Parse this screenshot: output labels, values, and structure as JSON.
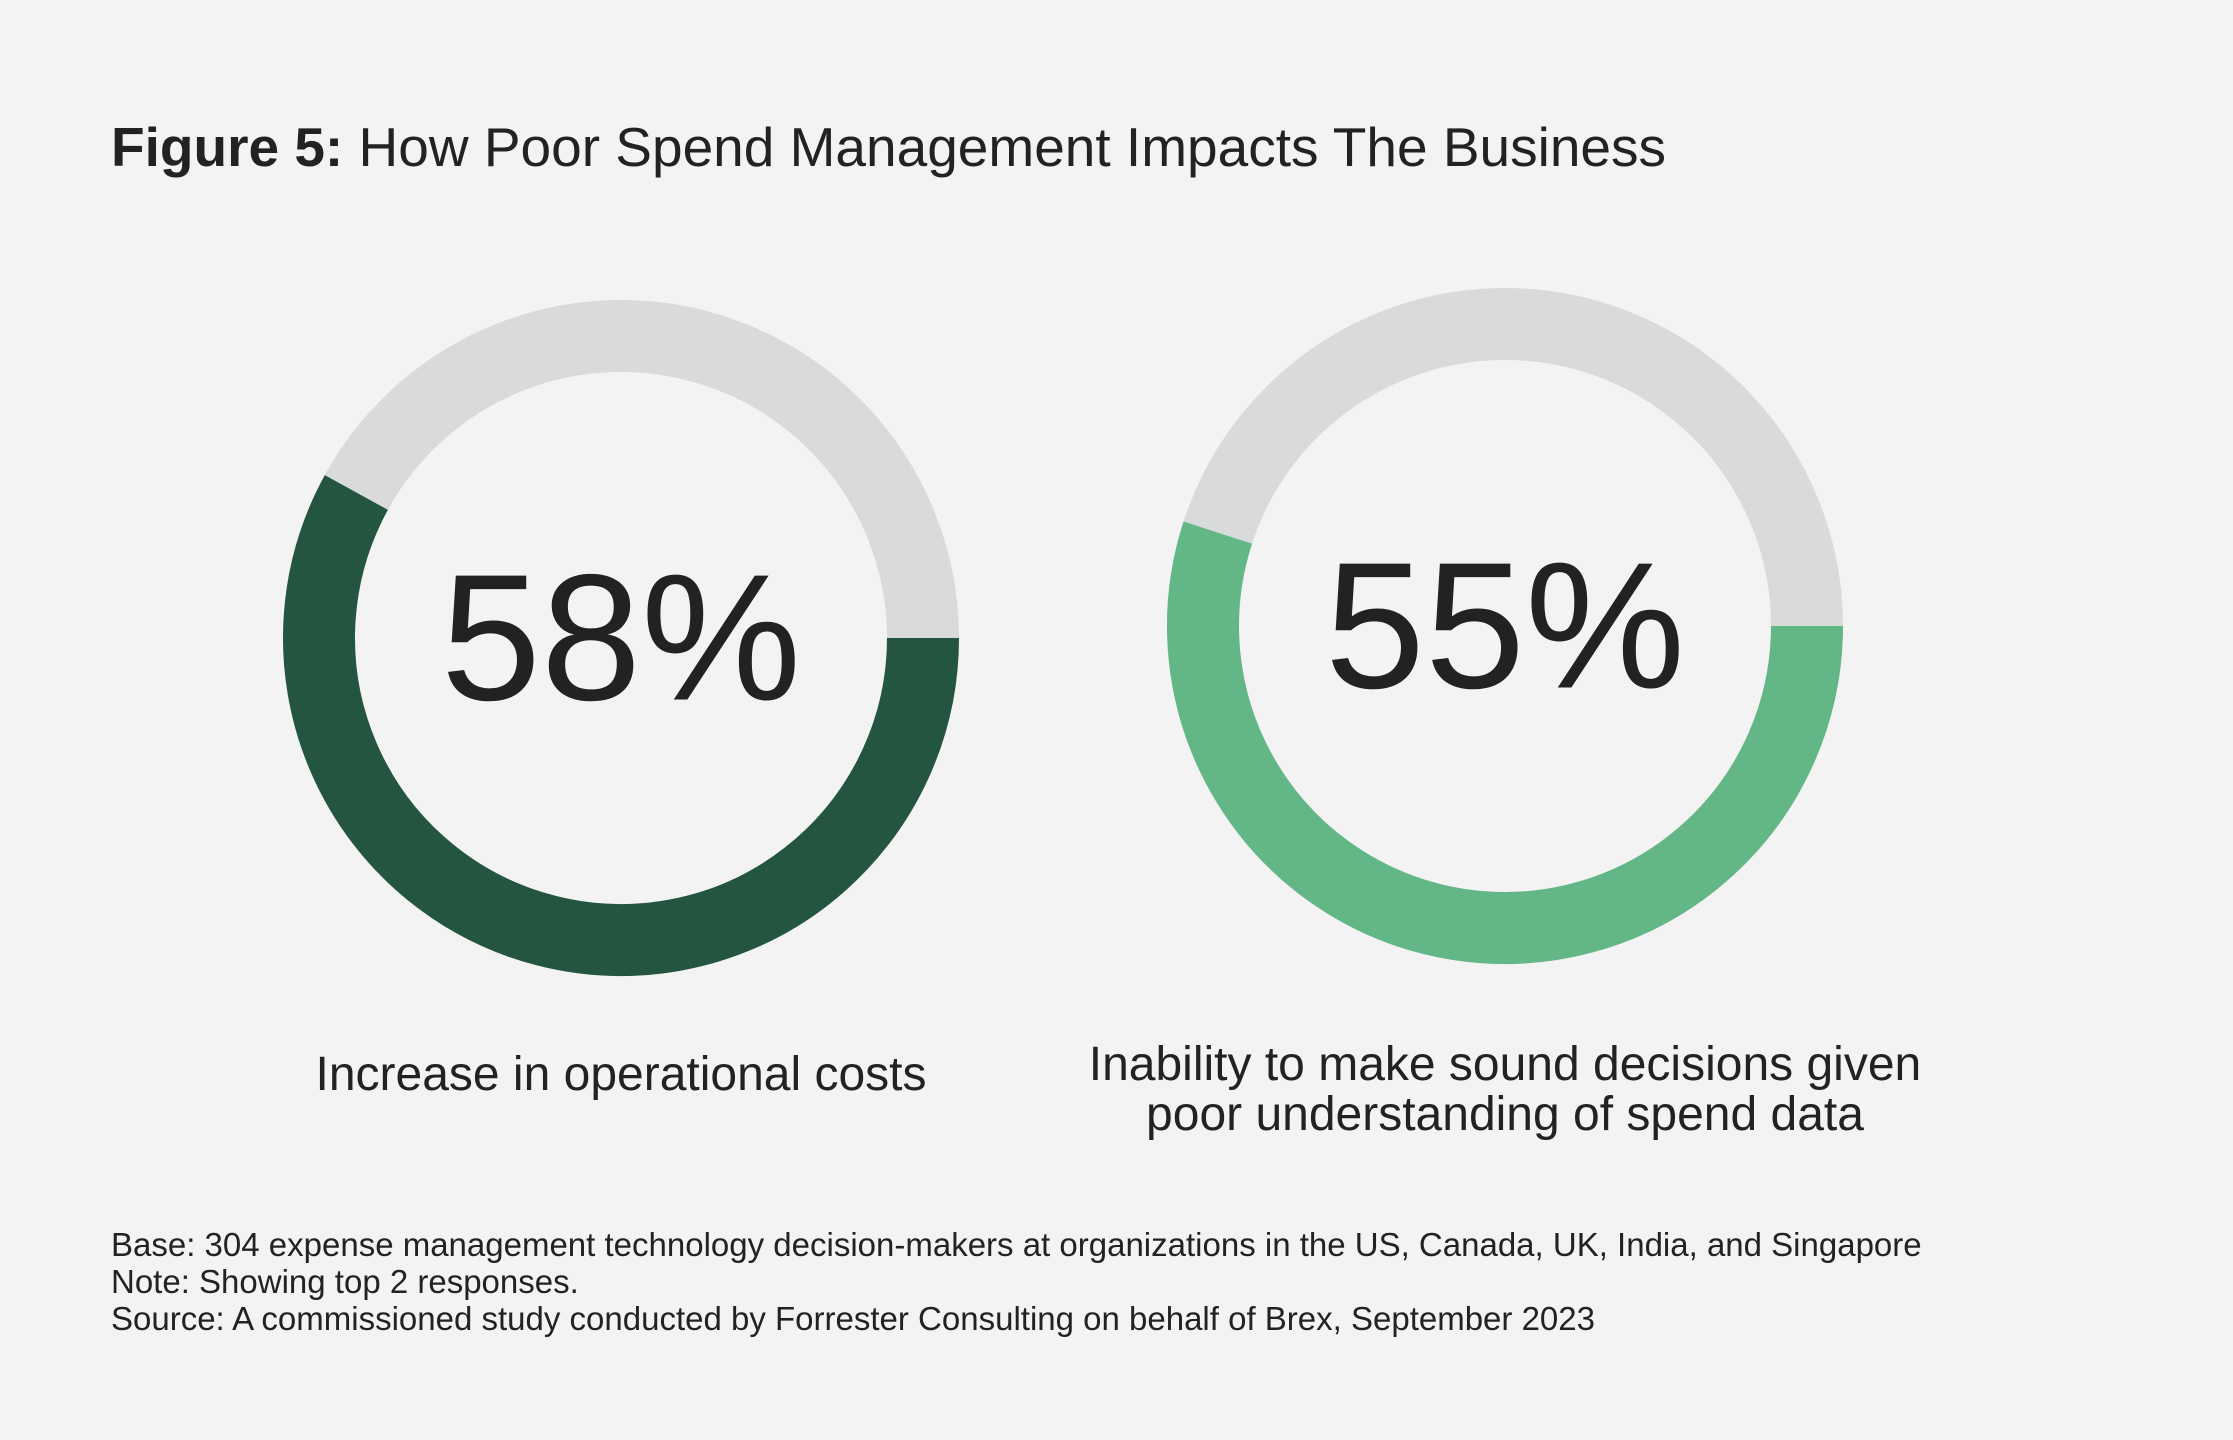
{
  "title": {
    "prefix": "Figure 5:",
    "text": "How Poor Spend Management Impacts The Business"
  },
  "chart_data": [
    {
      "type": "pie",
      "value": 58,
      "value_label": "58%",
      "label": "Increase in operational costs",
      "color": "#235540",
      "track_color": "#d9dbda"
    },
    {
      "type": "pie",
      "value": 55,
      "value_label": "55%",
      "label": "Inability to make sound decisions given\npoor understanding of spend data",
      "color": "#63b786",
      "track_color": "#d9dbda"
    }
  ],
  "footnotes": {
    "base": "Base: 304 expense management technology decision-makers at organizations in the US, Canada, UK, India, and Singapore",
    "note": "Note: Showing top 2 responses.",
    "source": "Source: A commissioned study conducted by Forrester Consulting on behalf of Brex, September 2023"
  }
}
